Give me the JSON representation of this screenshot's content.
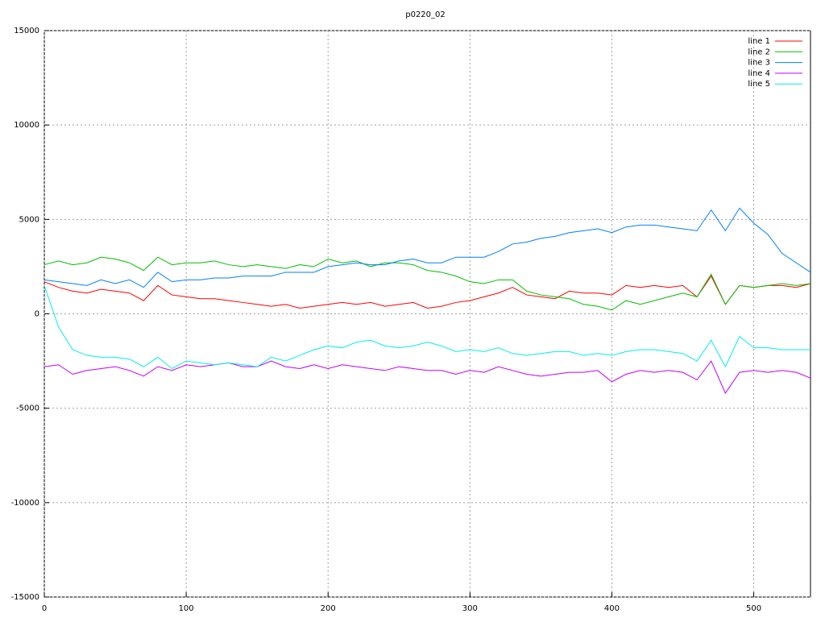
{
  "chart_data": {
    "type": "line",
    "title": "p0220_02",
    "x": [
      0,
      10,
      20,
      30,
      40,
      50,
      60,
      70,
      80,
      90,
      100,
      110,
      120,
      130,
      140,
      150,
      160,
      170,
      180,
      190,
      200,
      210,
      220,
      230,
      240,
      250,
      260,
      270,
      280,
      290,
      300,
      310,
      320,
      330,
      340,
      350,
      360,
      370,
      380,
      390,
      400,
      410,
      420,
      430,
      440,
      450,
      460,
      470,
      480,
      490,
      500,
      510,
      520,
      530,
      540
    ],
    "series": [
      {
        "name": "line 1",
        "color": "#ff0000",
        "values": [
          1700,
          1400,
          1200,
          1100,
          1300,
          1200,
          1100,
          700,
          1500,
          1000,
          900,
          800,
          800,
          700,
          600,
          500,
          400,
          500,
          300,
          400,
          500,
          600,
          500,
          600,
          400,
          500,
          600,
          300,
          400,
          600,
          700,
          900,
          1100,
          1400,
          1000,
          900,
          800,
          1200,
          1100,
          1100,
          1000,
          1500,
          1400,
          1500,
          1400,
          1500,
          900,
          2000,
          500,
          1500,
          1400,
          1500,
          1500,
          1400,
          1600
        ]
      },
      {
        "name": "line 2",
        "color": "#00c000",
        "values": [
          2600,
          2800,
          2600,
          2700,
          3000,
          2900,
          2700,
          2300,
          3000,
          2600,
          2700,
          2700,
          2800,
          2600,
          2500,
          2600,
          2500,
          2400,
          2600,
          2500,
          2900,
          2700,
          2800,
          2500,
          2700,
          2700,
          2600,
          2300,
          2200,
          2000,
          1700,
          1600,
          1800,
          1800,
          1200,
          1000,
          900,
          800,
          500,
          400,
          200,
          700,
          500,
          700,
          900,
          1100,
          900,
          2100,
          500,
          1500,
          1400,
          1500,
          1600,
          1500,
          1600
        ]
      },
      {
        "name": "line 3",
        "color": "#0080ff",
        "values": [
          1800,
          1700,
          1600,
          1500,
          1800,
          1600,
          1800,
          1400,
          2200,
          1700,
          1800,
          1800,
          1900,
          1900,
          2000,
          2000,
          2000,
          2200,
          2200,
          2200,
          2500,
          2600,
          2700,
          2600,
          2600,
          2800,
          2900,
          2700,
          2700,
          3000,
          3000,
          3000,
          3300,
          3700,
          3800,
          4000,
          4100,
          4300,
          4400,
          4500,
          4300,
          4600,
          4700,
          4700,
          4600,
          4500,
          4400,
          5500,
          4400,
          5600,
          4800,
          4200,
          3200,
          2700,
          2200
        ]
      },
      {
        "name": "line 4",
        "color": "#c000ff",
        "values": [
          -2800,
          -2700,
          -3200,
          -3000,
          -2900,
          -2800,
          -3000,
          -3300,
          -2800,
          -3000,
          -2700,
          -2800,
          -2700,
          -2600,
          -2800,
          -2800,
          -2500,
          -2800,
          -2900,
          -2700,
          -2900,
          -2700,
          -2800,
          -2900,
          -3000,
          -2800,
          -2900,
          -3000,
          -3000,
          -3200,
          -3000,
          -3100,
          -2800,
          -3000,
          -3200,
          -3300,
          -3200,
          -3100,
          -3100,
          -3000,
          -3600,
          -3200,
          -3000,
          -3100,
          -3000,
          -3100,
          -3500,
          -2500,
          -4200,
          -3100,
          -3000,
          -3100,
          -3000,
          -3100,
          -3400
        ]
      },
      {
        "name": "line 5",
        "color": "#00eeee",
        "values": [
          1500,
          -700,
          -1900,
          -2200,
          -2300,
          -2300,
          -2400,
          -2800,
          -2300,
          -2900,
          -2500,
          -2600,
          -2700,
          -2600,
          -2700,
          -2800,
          -2300,
          -2500,
          -2200,
          -1900,
          -1700,
          -1800,
          -1500,
          -1400,
          -1700,
          -1800,
          -1700,
          -1500,
          -1700,
          -2000,
          -1900,
          -2000,
          -1800,
          -2100,
          -2200,
          -2100,
          -2000,
          -2000,
          -2200,
          -2100,
          -2200,
          -2000,
          -1900,
          -1900,
          -2000,
          -2100,
          -2500,
          -1400,
          -2800,
          -1200,
          -1800,
          -1800,
          -1900,
          -1900,
          -1900
        ]
      }
    ],
    "xlim": [
      0,
      540
    ],
    "xticks": [
      0,
      100,
      200,
      300,
      400,
      500
    ],
    "ylim": [
      -15000,
      15000
    ],
    "yticks": [
      -15000,
      -10000,
      -5000,
      0,
      5000,
      10000,
      15000
    ],
    "grid": true,
    "legend": "top-right"
  }
}
